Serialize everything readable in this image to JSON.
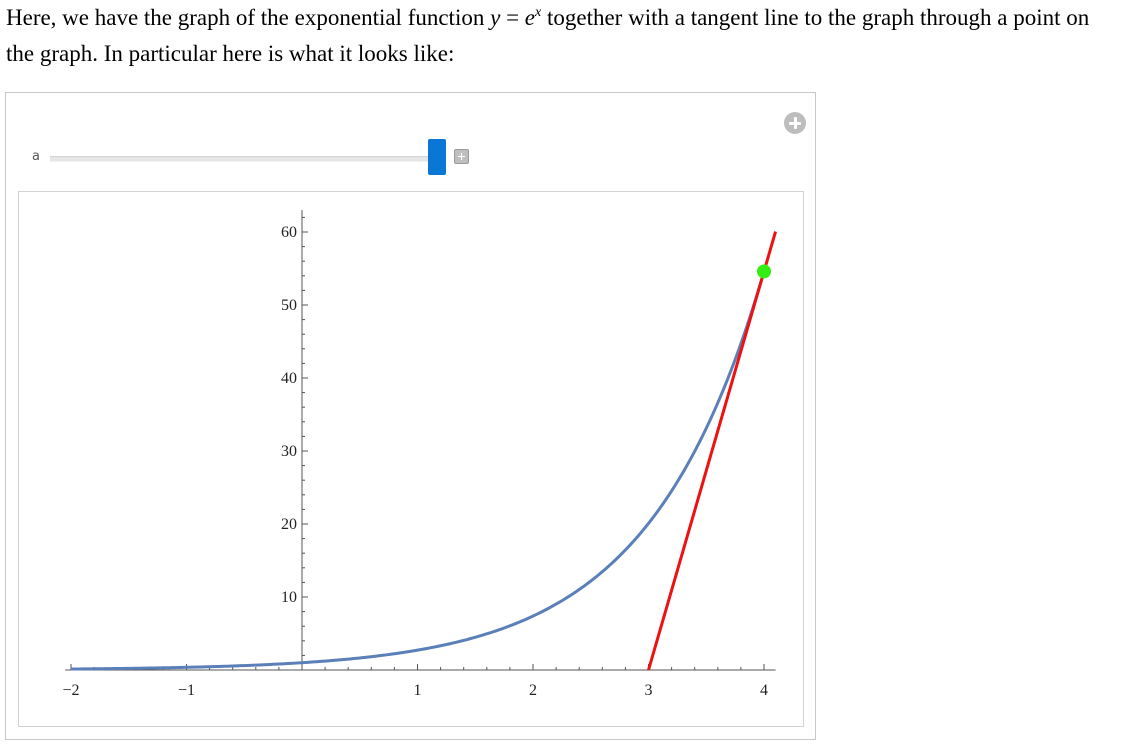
{
  "intro": {
    "p1": "Here, we have the graph of the exponential function ",
    "y_var": "y",
    "equals": " = ",
    "e_base": "e",
    "exp": "x",
    "p2": " together with a tangent line to the graph through a point on the graph. In particular here is what it looks like:"
  },
  "slider": {
    "label": "a",
    "min": -2,
    "max": 4,
    "value": 4
  },
  "colors": {
    "curve": "#5b7fb8",
    "tangent": "#ee1111",
    "point": "#33ee11"
  },
  "chart_data": {
    "type": "line",
    "title": "",
    "xlabel": "",
    "ylabel": "",
    "xlim": [
      -2.05,
      4.1
    ],
    "ylim": [
      0,
      63
    ],
    "x_ticks": [
      -2,
      -1,
      1,
      2,
      3,
      4
    ],
    "x_tick_labels": [
      "-2",
      "-1",
      "1",
      "2",
      "3",
      "4"
    ],
    "y_ticks": [
      10,
      20,
      30,
      40,
      50,
      60
    ],
    "y_tick_labels": [
      "10",
      "20",
      "30",
      "40",
      "50",
      "60"
    ],
    "grid": false,
    "series": [
      {
        "function": "exp",
        "x": [
          -2.0,
          -1.5,
          -1.0,
          -0.5,
          0.0,
          0.5,
          1.0,
          1.5,
          2.0,
          2.5,
          3.0,
          3.25,
          3.5,
          3.75,
          4.0
        ],
        "y": [
          0.14,
          0.22,
          0.37,
          0.61,
          1.0,
          1.65,
          2.72,
          4.48,
          7.39,
          12.18,
          20.09,
          25.79,
          33.12,
          42.52,
          54.6
        ]
      },
      {
        "function": "tangent",
        "x": [
          3.0,
          4.1
        ],
        "y": [
          0.0,
          60.06
        ]
      }
    ],
    "points": [
      {
        "x": 4.0,
        "y": 54.6
      }
    ]
  }
}
